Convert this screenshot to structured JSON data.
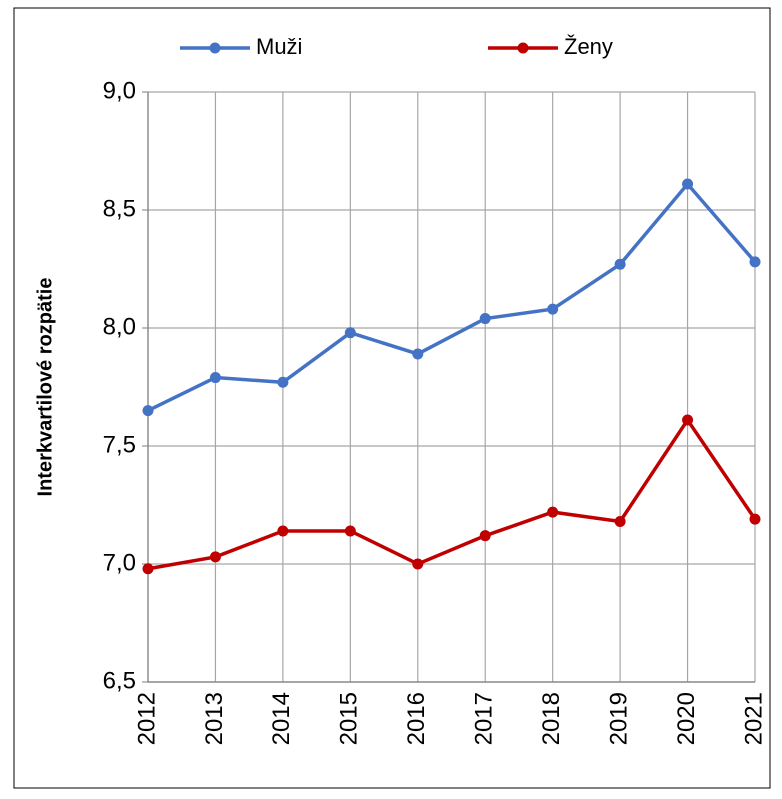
{
  "chart_data": {
    "type": "line",
    "y_label": "Interkvartilové rozpätie",
    "categories": [
      "2012",
      "2013",
      "2014",
      "2015",
      "2016",
      "2017",
      "2018",
      "2019",
      "2020",
      "2021"
    ],
    "series": [
      {
        "name": "Muži",
        "color": "#4472c4",
        "values": [
          7.65,
          7.79,
          7.77,
          7.98,
          7.89,
          8.04,
          8.08,
          8.27,
          8.61,
          8.28
        ]
      },
      {
        "name": "Ženy",
        "color": "#c00000",
        "values": [
          6.98,
          7.03,
          7.14,
          7.14,
          7.0,
          7.12,
          7.22,
          7.18,
          7.61,
          7.19
        ]
      }
    ],
    "ylim": [
      6.5,
      9.0
    ],
    "yticks": [
      {
        "value": 6.5,
        "label": "6,5"
      },
      {
        "value": 7.0,
        "label": "7,0"
      },
      {
        "value": 7.5,
        "label": "7,5"
      },
      {
        "value": 8.0,
        "label": "8,0"
      },
      {
        "value": 8.5,
        "label": "8,5"
      },
      {
        "value": 9.0,
        "label": "9,0"
      }
    ],
    "grid": true,
    "legend": "top"
  }
}
